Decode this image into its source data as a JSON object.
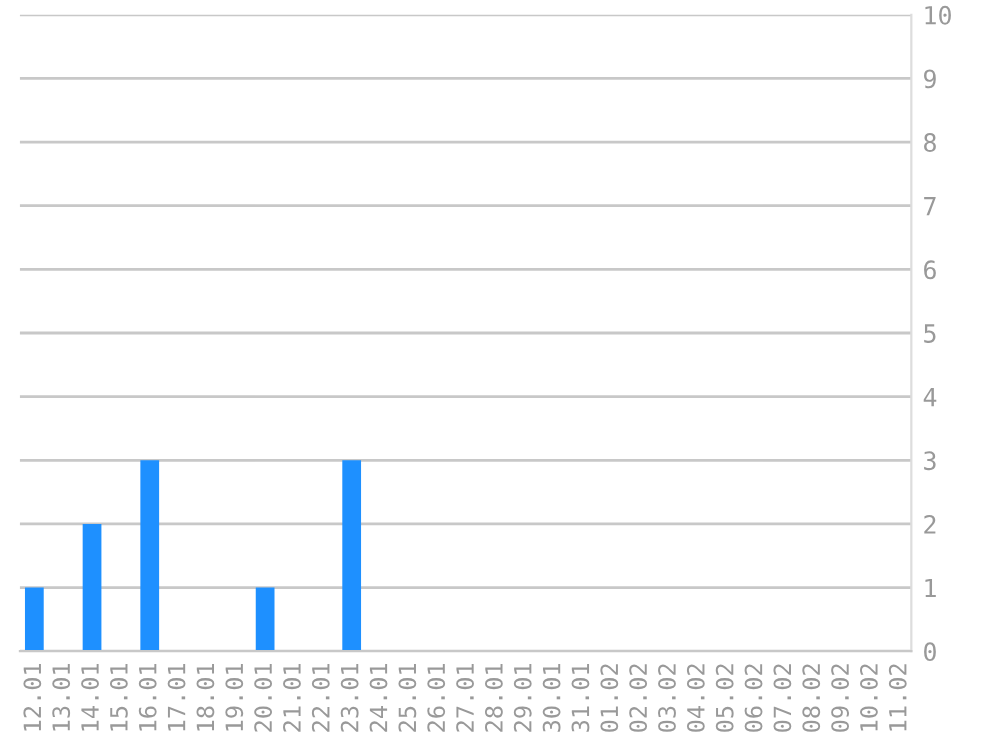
{
  "chart_data": {
    "type": "bar",
    "categories": [
      "12.01",
      "13.01",
      "14.01",
      "15.01",
      "16.01",
      "17.01",
      "18.01",
      "19.01",
      "20.01",
      "21.01",
      "22.01",
      "23.01",
      "24.01",
      "25.01",
      "26.01",
      "27.01",
      "28.01",
      "29.01",
      "30.01",
      "31.01",
      "01.02",
      "02.02",
      "03.02",
      "04.02",
      "05.02",
      "06.02",
      "07.02",
      "08.02",
      "09.02",
      "10.02",
      "11.02"
    ],
    "values": [
      1,
      0,
      2,
      0,
      3,
      0,
      0,
      0,
      1,
      0,
      0,
      3,
      0,
      0,
      0,
      0,
      0,
      0,
      0,
      0,
      0,
      0,
      0,
      0,
      0,
      0,
      0,
      0,
      0,
      0,
      0
    ],
    "color": "#1e90ff",
    "ylim": [
      0,
      10
    ],
    "yticks": [
      0,
      1,
      2,
      3,
      4,
      5,
      6,
      7,
      8,
      9,
      10
    ],
    "grid": "y"
  }
}
